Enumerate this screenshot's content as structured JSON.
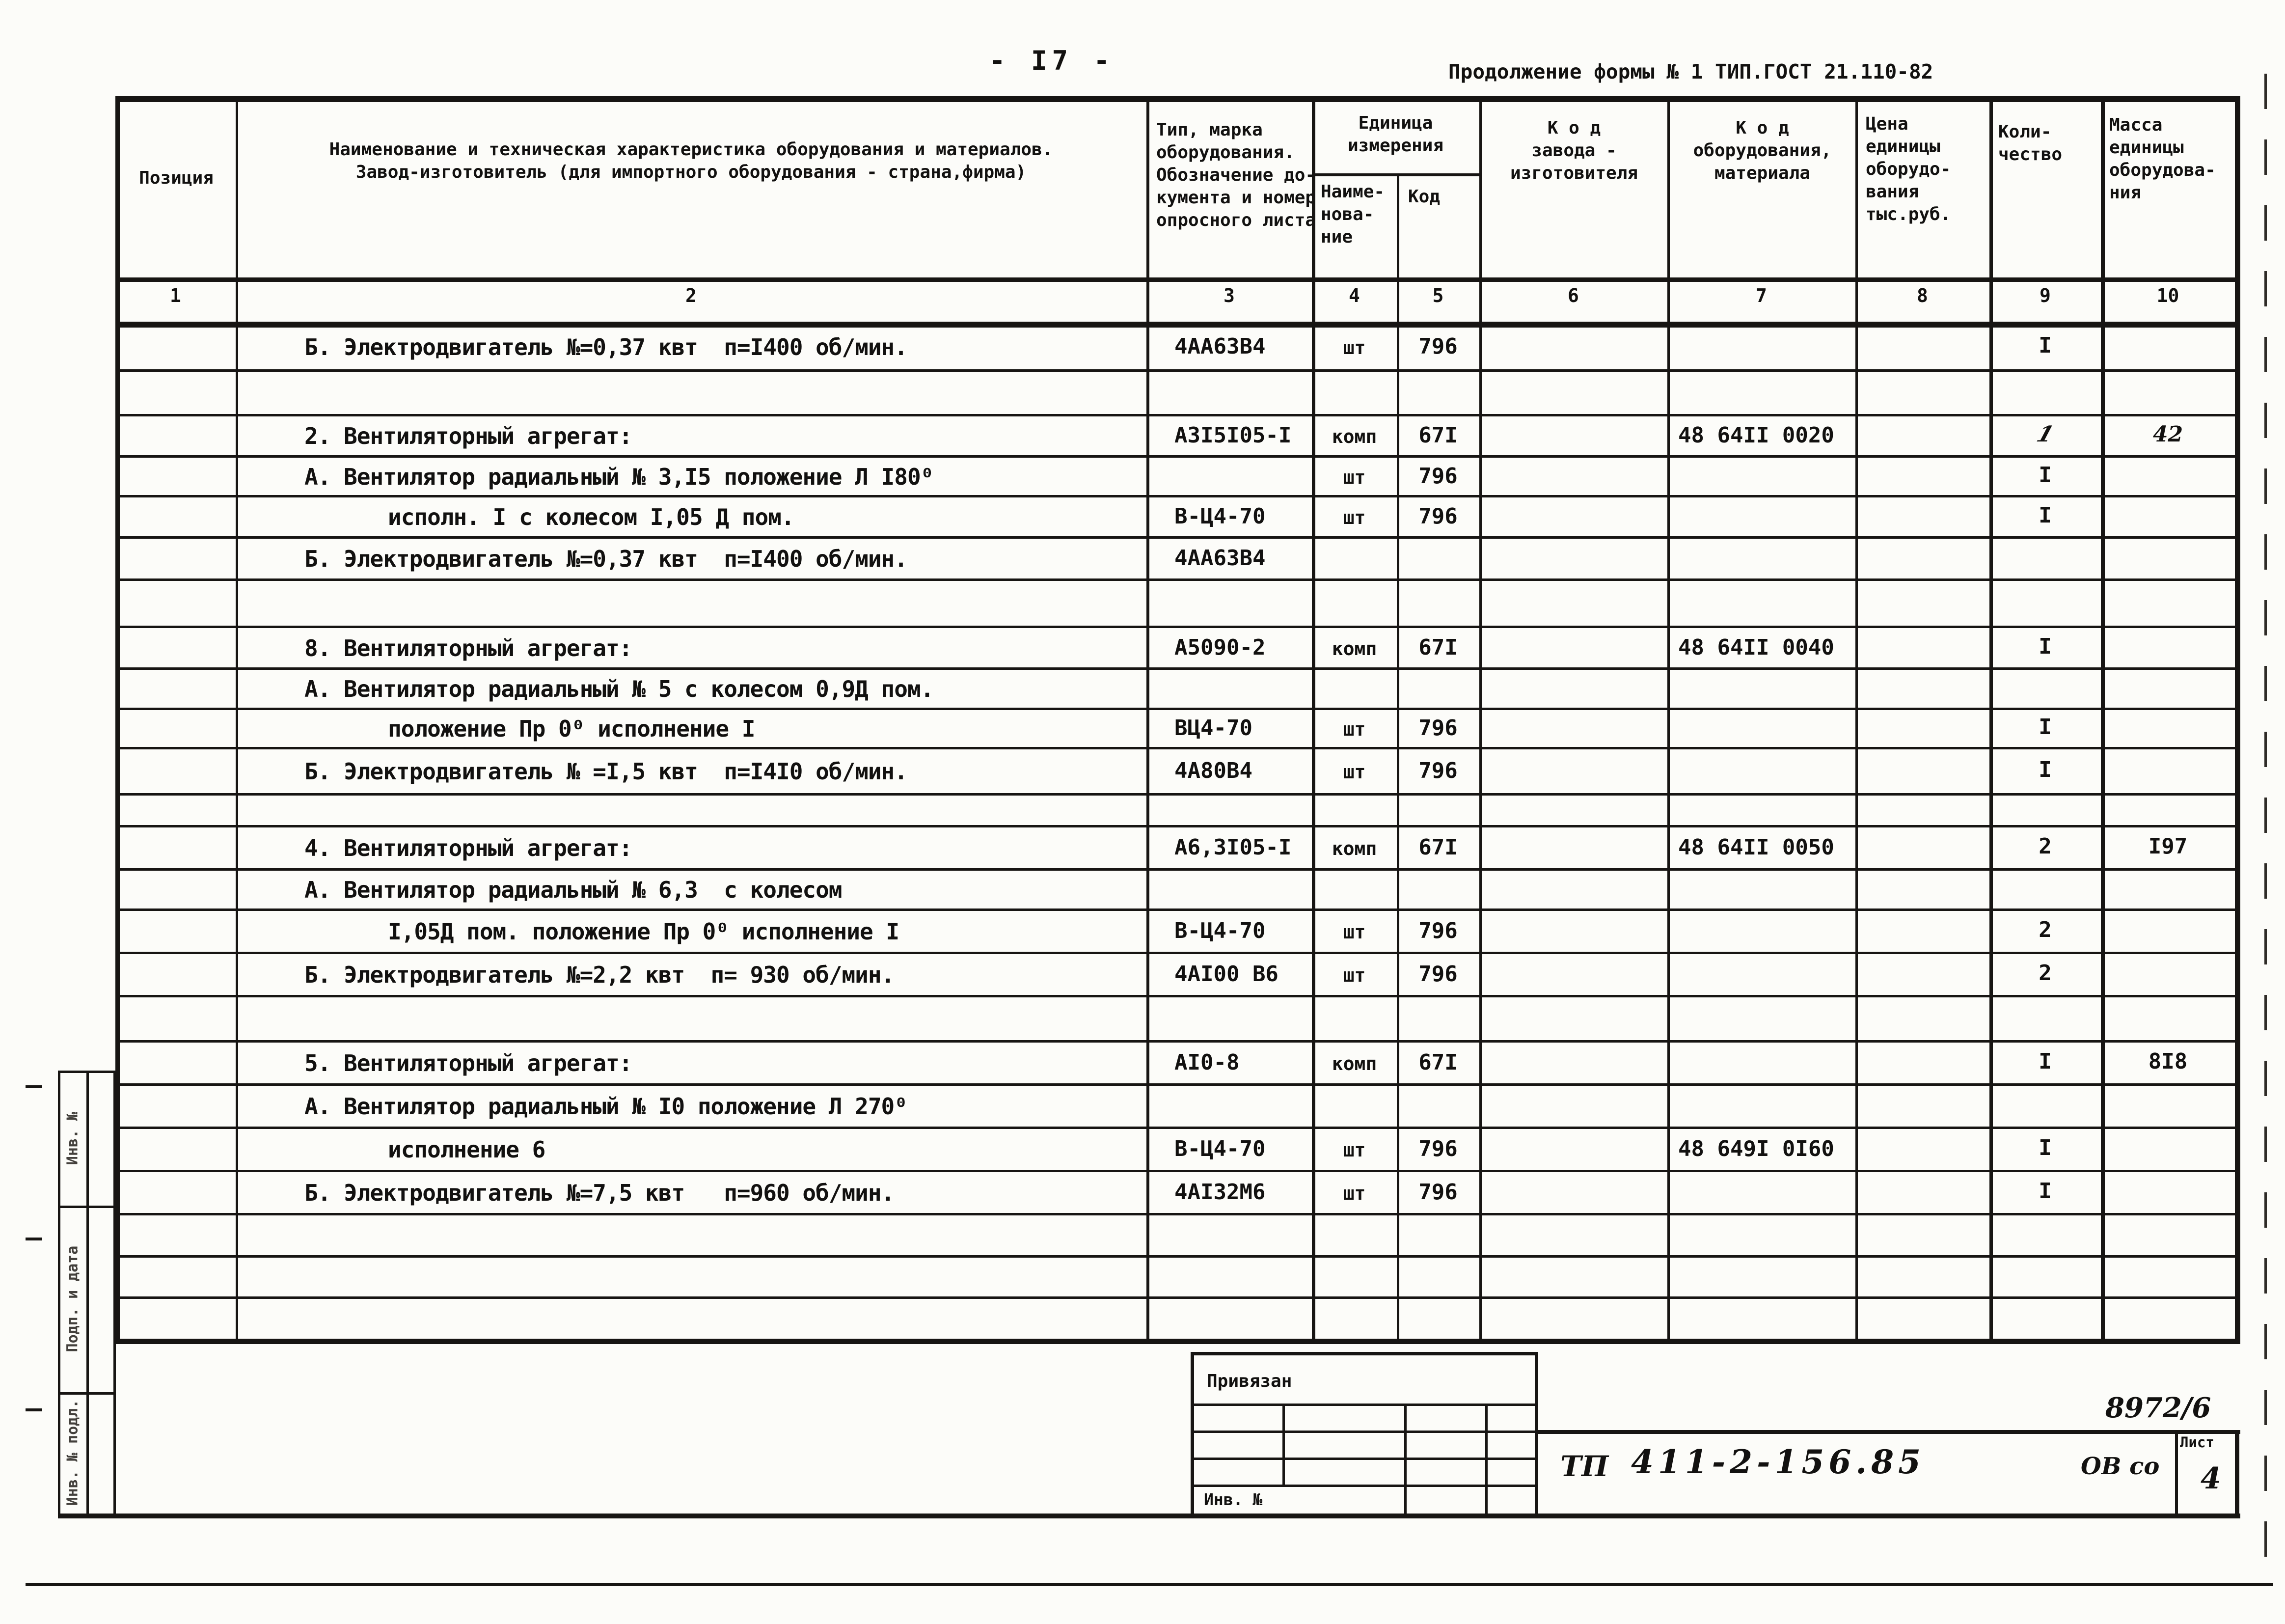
{
  "page": {
    "page_number": "- I7 -",
    "form_continuation": "Продолжение формы № 1  ТИП.ГОСТ 21.110-82"
  },
  "table": {
    "headers": {
      "c1": "Позиция",
      "c2": [
        "Наименование и техническая характеристика оборудования и материалов.",
        "Завод-изготовитель (для импортного оборудования - страна,фирма)"
      ],
      "c3": [
        "Тип, марка",
        "оборудования.",
        "Обозначение до-",
        "кумента и номер",
        "опросного листа"
      ],
      "c45_group": [
        "Единица",
        "измерения"
      ],
      "c4": [
        "Наиме-",
        "нова-",
        "ние"
      ],
      "c5": "Код",
      "c6": [
        "К о д",
        "завода -",
        "изготовителя"
      ],
      "c7": [
        "К о д",
        "оборудования,",
        "материала"
      ],
      "c8": [
        "Цена",
        "единицы",
        "оборудо-",
        "вания",
        "тыс.руб."
      ],
      "c9": [
        "Коли-",
        "чество"
      ],
      "c10": [
        "Масса",
        "единицы",
        "оборудова-",
        "ния"
      ],
      "numbers": [
        "1",
        "2",
        "3",
        "4",
        "5",
        "6",
        "7",
        "8",
        "9",
        "10"
      ]
    },
    "rows": [
      {
        "name": "Б. Электродвигатель №=0,37 квт  п=I400 об/мин.",
        "type": "4АА63В4",
        "unit": "шт",
        "unit_code": "796",
        "qty": "I"
      },
      {},
      {
        "name": "2. Вентиляторный агрегат:",
        "type": "А3I5I05-I",
        "unit": "комп",
        "unit_code": "67I",
        "equip_code": "48 64II 0020",
        "qty": "1",
        "qty_handwritten": true,
        "mass": "42",
        "mass_handwritten": true
      },
      {
        "name": "А. Вентилятор радиальный № 3,I5 положение Л I80⁰",
        "unit": "шт",
        "unit_code": "796",
        "qty": "I"
      },
      {
        "name": "исполн. I с колесом I,05 Д пом.",
        "indent": true,
        "type": "В-Ц4-70",
        "unit": "шт",
        "unit_code": "796",
        "qty": "I"
      },
      {
        "name": "Б. Электродвигатель №=0,37 квт  п=I400 об/мин.",
        "type": "4АА63В4"
      },
      {},
      {
        "name": "8. Вентиляторный агрегат:",
        "type": "А5090-2",
        "unit": "комп",
        "unit_code": "67I",
        "equip_code": "48 64II 0040",
        "qty": "I"
      },
      {
        "name": "А. Вентилятор радиальный № 5 с колесом 0,9Д пом."
      },
      {
        "name": "положение Пр 0⁰ исполнение I",
        "indent": true,
        "type": "ВЦ4-70",
        "unit": "шт",
        "unit_code": "796",
        "qty": "I"
      },
      {
        "name": "Б. Электродвигатель № =I,5 квт  п=I4I0 об/мин.",
        "type": "4А80В4",
        "unit": "шт",
        "unit_code": "796",
        "qty": "I"
      },
      {},
      {
        "name": "4. Вентиляторный агрегат:",
        "type": "А6,3I05-I",
        "unit": "комп",
        "unit_code": "67I",
        "equip_code": "48 64II 0050",
        "qty": "2",
        "mass": "I97"
      },
      {
        "name": "А. Вентилятор радиальный № 6,3  с колесом"
      },
      {
        "name": "I,05Д пом. положение Пр 0⁰ исполнение I",
        "indent": true,
        "type": "В-Ц4-70",
        "unit": "шт",
        "unit_code": "796",
        "qty": "2"
      },
      {
        "name": "Б. Электродвигатель №=2,2 квт  п= 930 об/мин.",
        "type": "4АI00 В6",
        "unit": "шт",
        "unit_code": "796",
        "qty": "2"
      },
      {},
      {
        "name": "5. Вентиляторный агрегат:",
        "type": "АI0-8",
        "unit": "комп",
        "unit_code": "67I",
        "qty": "I",
        "mass": "8I8"
      },
      {
        "name": "А. Вентилятор радиальный № I0 положение Л 270⁰"
      },
      {
        "name": "исполнение 6",
        "indent": true,
        "type": "В-Ц4-70",
        "unit": "шт",
        "unit_code": "796",
        "equip_code": "48 649I 0I60",
        "qty": "I"
      },
      {
        "name": "Б. Электродвигатель №=7,5 квт   п=960 об/мин.",
        "type": "4АI32М6",
        "unit": "шт",
        "unit_code": "796",
        "qty": "I"
      },
      {},
      {},
      {}
    ]
  },
  "stamp": {
    "title": "Привязан",
    "inv_label": "Инв. №"
  },
  "titleblock": {
    "tp": "ТП",
    "doc_number": "411-2-156.85",
    "doc_ref": "8972/6",
    "org_mark": "ОВ со",
    "sheet_label": "Лист",
    "sheet_number": "4"
  },
  "margin": {
    "box_top": "Инв. №",
    "box_middle": "Подп. и дата",
    "box_bottom": "Инв. № подл."
  }
}
